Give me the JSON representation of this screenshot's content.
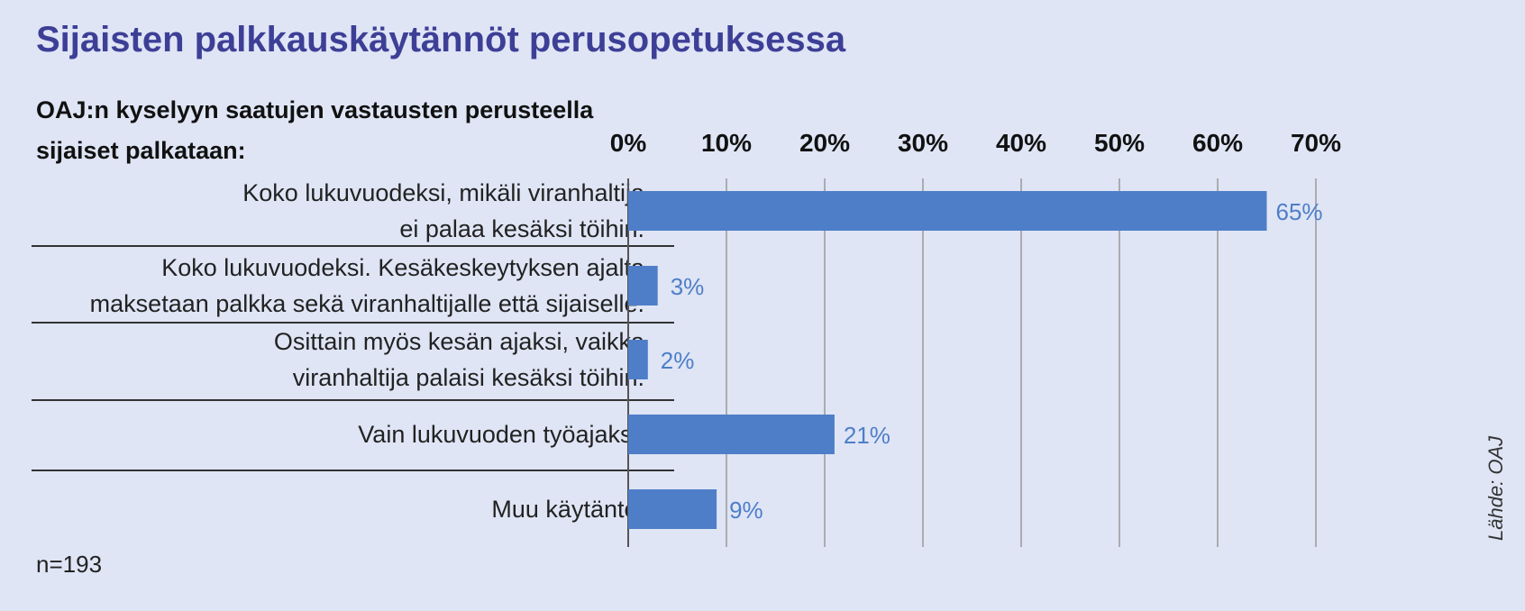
{
  "chart_data": {
    "type": "bar",
    "orientation": "horizontal",
    "title": "Sijaisten palkkauskäytännöt perusopetuksessa",
    "subtitle": "OAJ:n kyselyyn saatujen vastausten perusteella sijaiset palkataan:",
    "categories": [
      [
        "Koko lukuvuodeksi, mikäli viranhaltija",
        "ei palaa kesäksi töihin."
      ],
      [
        "Koko lukuvuodeksi. Kesäkeskeytyksen ajalta",
        "maksetaan palkka sekä viranhaltijalle että sijaiselle."
      ],
      [
        "Osittain myös kesän ajaksi, vaikka",
        "viranhaltija palaisi kesäksi töihin."
      ],
      [
        "Vain lukuvuoden työajaksi."
      ],
      [
        "Muu käytäntö."
      ]
    ],
    "values": [
      65,
      3,
      2,
      21,
      9
    ],
    "value_labels": [
      "65%",
      "3%",
      "2%",
      "21%",
      "9%"
    ],
    "xlim": [
      0,
      70
    ],
    "ticks": [
      "0%",
      "10%",
      "20%",
      "30%",
      "40%",
      "50%",
      "60%",
      "70%"
    ],
    "bar_color": "#4e7ec8",
    "grid": true,
    "legend": "none"
  },
  "note": "n=193",
  "source": "Lähde: OAJ"
}
